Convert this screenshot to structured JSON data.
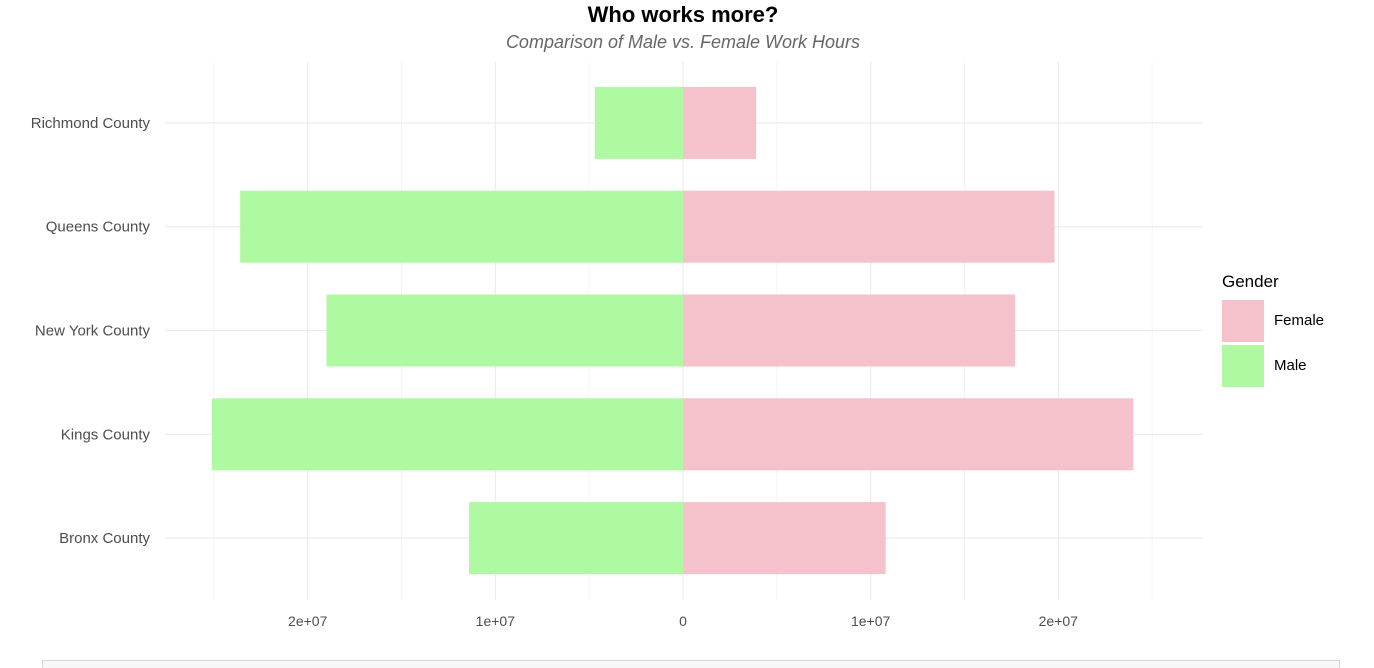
{
  "chart_data": {
    "type": "bar",
    "orientation": "horizontal",
    "layout": "diverging",
    "title": "Who works more?",
    "subtitle": "Comparison of Male vs. Female Work Hours",
    "xlabel": "",
    "ylabel": "",
    "categories": [
      "Richmond County",
      "Queens County",
      "New York County",
      "Kings County",
      "Bronx County"
    ],
    "series": [
      {
        "name": "Female",
        "color": "#f5c1ca",
        "values": [
          3900000,
          19800000,
          17700000,
          24000000,
          10800000
        ]
      },
      {
        "name": "Male",
        "color": "#aff9a2",
        "values": [
          4700000,
          23600000,
          19000000,
          25100000,
          11400000
        ]
      }
    ],
    "xlim": [
      -25100000,
      25100000
    ],
    "x_ticks": [
      {
        "value": -20000000,
        "label": "2e+07"
      },
      {
        "value": -10000000,
        "label": "1e+07"
      },
      {
        "value": 0,
        "label": "0"
      },
      {
        "value": 10000000,
        "label": "1e+07"
      },
      {
        "value": 20000000,
        "label": "2e+07"
      }
    ],
    "grid": true,
    "legend": {
      "title": "Gender",
      "position": "right"
    }
  }
}
